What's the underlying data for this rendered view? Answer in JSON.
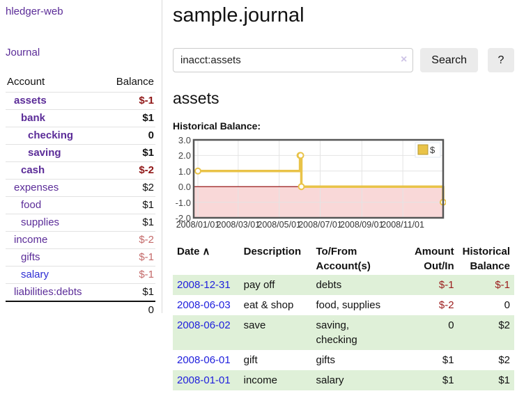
{
  "brand": "hledger-web",
  "colors": {
    "accent_purple": "#5b2c98",
    "link_blue": "#2d2dd4",
    "negative_strong": "#8f1616",
    "negative_muted": "#c46a6a",
    "table_stripe_green": "#dff0d8",
    "chart_line_gold": "#e9c348",
    "chart_negative_fill": "#f9d8d8",
    "chart_zero_line": "#8b0000"
  },
  "sidebar": {
    "journal_link": "Journal",
    "accounts_table": {
      "headers": {
        "account": "Account",
        "balance": "Balance"
      },
      "rows": [
        {
          "name": "assets",
          "indent": 1,
          "bold": true,
          "balance": "$-1"
        },
        {
          "name": "bank",
          "indent": 2,
          "bold": true,
          "balance": "$1"
        },
        {
          "name": "checking",
          "indent": 3,
          "bold": true,
          "balance": "0"
        },
        {
          "name": "saving",
          "indent": 3,
          "bold": true,
          "balance": "$1"
        },
        {
          "name": "cash",
          "indent": 2,
          "bold": true,
          "balance": "$-2"
        },
        {
          "name": "expenses",
          "indent": 1,
          "bold": false,
          "balance": "$2"
        },
        {
          "name": "food",
          "indent": 2,
          "bold": false,
          "balance": "$1"
        },
        {
          "name": "supplies",
          "indent": 2,
          "bold": false,
          "balance": "$1"
        },
        {
          "name": "income",
          "indent": 1,
          "bold": false,
          "balance": "$-2"
        },
        {
          "name": "gifts",
          "indent": 2,
          "bold": false,
          "balance": "$-1"
        },
        {
          "name": "salary",
          "indent": 2,
          "bold": false,
          "balance": "$-1",
          "link_color": "blue"
        },
        {
          "name": "liabilities:debts",
          "indent": 1,
          "bold": false,
          "balance": "$1"
        }
      ],
      "total": "0"
    }
  },
  "header": {
    "title": "sample.journal"
  },
  "search": {
    "value": "inacct:assets",
    "clear_icon": "×",
    "button": "Search",
    "help_button": "?"
  },
  "account_page": {
    "title": "assets",
    "chart_label": "Historical Balance:"
  },
  "chart_data": {
    "type": "line",
    "step": true,
    "title": "Historical Balance",
    "legend": "$",
    "legend_position": "top-right",
    "grid": true,
    "ylim": [
      -2,
      3
    ],
    "xlim": [
      "2008-01-01",
      "2008-12-31"
    ],
    "y_ticks": [
      "3.0",
      "2.0",
      "1.0",
      "0.0",
      "-1.0",
      "-2.0"
    ],
    "y_tick_values": [
      3,
      2,
      1,
      0,
      -1,
      -2
    ],
    "x_ticks": [
      "2008/01/01",
      "2008/03/01",
      "2008/05/01",
      "2008/07/01",
      "2008/09/01",
      "2008/11/01"
    ],
    "x_tick_dates": [
      "2008-01-01",
      "2008-03-01",
      "2008-05-01",
      "2008-07-01",
      "2008-09-01",
      "2008-11-01"
    ],
    "series": [
      {
        "name": "$",
        "color": "#e9c348",
        "points": [
          {
            "x": "2008-01-01",
            "y": 1
          },
          {
            "x": "2008-06-01",
            "y": 2
          },
          {
            "x": "2008-06-02",
            "y": 2
          },
          {
            "x": "2008-06-03",
            "y": 0
          },
          {
            "x": "2008-12-31",
            "y": -1
          }
        ]
      }
    ]
  },
  "register_table": {
    "headers": {
      "date": "Date",
      "sort_icon": "∧",
      "description": "Description",
      "accounts": "To/From\nAccount(s)",
      "amount": "Amount\nOut/In",
      "balance": "Historical\nBalance"
    },
    "rows": [
      {
        "date": "2008-12-31",
        "description": "pay off",
        "accounts": "debts",
        "amount": "$-1",
        "balance": "$-1"
      },
      {
        "date": "2008-06-03",
        "description": "eat & shop",
        "accounts": "food, supplies",
        "amount": "$-2",
        "balance": "0"
      },
      {
        "date": "2008-06-02",
        "description": "save",
        "accounts": "saving,\nchecking",
        "amount": "0",
        "balance": "$2"
      },
      {
        "date": "2008-06-01",
        "description": "gift",
        "accounts": "gifts",
        "amount": "$1",
        "balance": "$2"
      },
      {
        "date": "2008-01-01",
        "description": "income",
        "accounts": "salary",
        "amount": "$1",
        "balance": "$1"
      }
    ]
  }
}
